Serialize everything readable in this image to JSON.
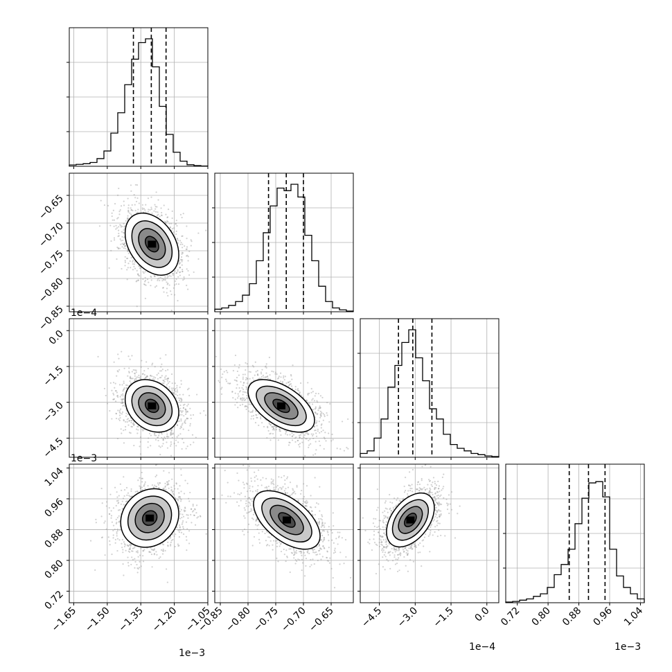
{
  "chart_data": {
    "type": "corner",
    "grid": true,
    "parameters": [
      {
        "range": [
          -1.67,
          -1.05
        ],
        "ticks": [
          -1.65,
          -1.5,
          -1.35,
          -1.2,
          -1.05
        ],
        "tick_labels": [
          "−1.65",
          "−1.50",
          "−1.35",
          "−1.20",
          "−1.05"
        ],
        "offset": "1e−3",
        "quantiles": [
          -1.383,
          -1.303,
          -1.237
        ],
        "hist_counts": [
          0.01,
          0.015,
          0.02,
          0.03,
          0.06,
          0.12,
          0.26,
          0.42,
          0.64,
          0.84,
          0.97,
          1.0,
          0.78,
          0.47,
          0.25,
          0.11,
          0.04,
          0.012,
          0.005,
          0.002
        ],
        "mode": [
          -1.29,
          -1.29,
          -1.29
        ]
      },
      {
        "range": [
          -0.86,
          -0.61
        ],
        "ticks": [
          -0.85,
          -0.8,
          -0.75,
          -0.7,
          -0.65
        ],
        "tick_labels": [
          "−0.85",
          "−0.80",
          "−0.75",
          "−0.70",
          "−0.65"
        ],
        "offset": "1e−4",
        "quantiles": [
          -0.763,
          -0.731,
          -0.7
        ],
        "hist_counts": [
          0.02,
          0.03,
          0.05,
          0.08,
          0.13,
          0.22,
          0.4,
          0.62,
          0.83,
          0.97,
          0.95,
          1.0,
          0.9,
          0.6,
          0.4,
          0.2,
          0.08,
          0.03,
          0.015,
          0.005
        ],
        "mode": [
          -0.73,
          -0.73,
          -0.73
        ]
      },
      {
        "range": [
          -5.3,
          0.5
        ],
        "ticks": [
          -4.5,
          -3.0,
          -1.5,
          0.0
        ],
        "tick_labels": [
          "−4.5",
          "−3.0",
          "−1.5",
          "0.0"
        ],
        "offset": "1e−4",
        "quantiles": [
          -3.7,
          -3.1,
          -2.3
        ],
        "hist_counts": [
          0.03,
          0.05,
          0.15,
          0.3,
          0.55,
          0.72,
          0.9,
          1.0,
          0.78,
          0.6,
          0.38,
          0.3,
          0.18,
          0.1,
          0.07,
          0.05,
          0.03,
          0.02,
          0.01,
          0.005
        ],
        "mode": [
          -3.2,
          -3.2,
          -3.2
        ]
      },
      {
        "range": [
          0.69,
          1.05
        ],
        "ticks": [
          0.72,
          0.8,
          0.88,
          0.96,
          1.04
        ],
        "tick_labels": [
          "0.72",
          "0.80",
          "0.88",
          "0.96",
          "1.04"
        ],
        "offset": "1e−3",
        "quantiles": [
          0.855,
          0.905,
          0.948
        ],
        "hist_counts": [
          0.005,
          0.01,
          0.02,
          0.03,
          0.05,
          0.07,
          0.12,
          0.22,
          0.3,
          0.42,
          0.62,
          0.82,
          0.94,
          0.95,
          0.83,
          0.42,
          0.21,
          0.12,
          0.07,
          0.03
        ],
        "mode": [
          0.915,
          0.915,
          0.915
        ]
      }
    ],
    "pairs": [
      {
        "x": 0,
        "y": 1,
        "center": [
          -1.3,
          -0.738
        ],
        "sd": [
          0.06,
          0.028
        ],
        "rho": -0.35
      },
      {
        "x": 0,
        "y": 2,
        "center": [
          -1.3,
          -3.15
        ],
        "sd": [
          0.06,
          0.55
        ],
        "rho": -0.25
      },
      {
        "x": 1,
        "y": 2,
        "center": [
          -0.74,
          -3.15
        ],
        "sd": [
          0.03,
          0.55
        ],
        "rho": -0.55
      },
      {
        "x": 0,
        "y": 3,
        "center": [
          -1.31,
          0.91
        ],
        "sd": [
          0.065,
          0.038
        ],
        "rho": 0.15
      },
      {
        "x": 1,
        "y": 3,
        "center": [
          -0.73,
          0.905
        ],
        "sd": [
          0.03,
          0.038
        ],
        "rho": -0.55
      },
      {
        "x": 2,
        "y": 3,
        "center": [
          -3.2,
          0.905
        ],
        "sd": [
          0.5,
          0.035
        ],
        "rho": 0.45
      }
    ],
    "contour_levels_sigma": [
      0.5,
      1.0,
      1.5,
      2.0
    ]
  }
}
